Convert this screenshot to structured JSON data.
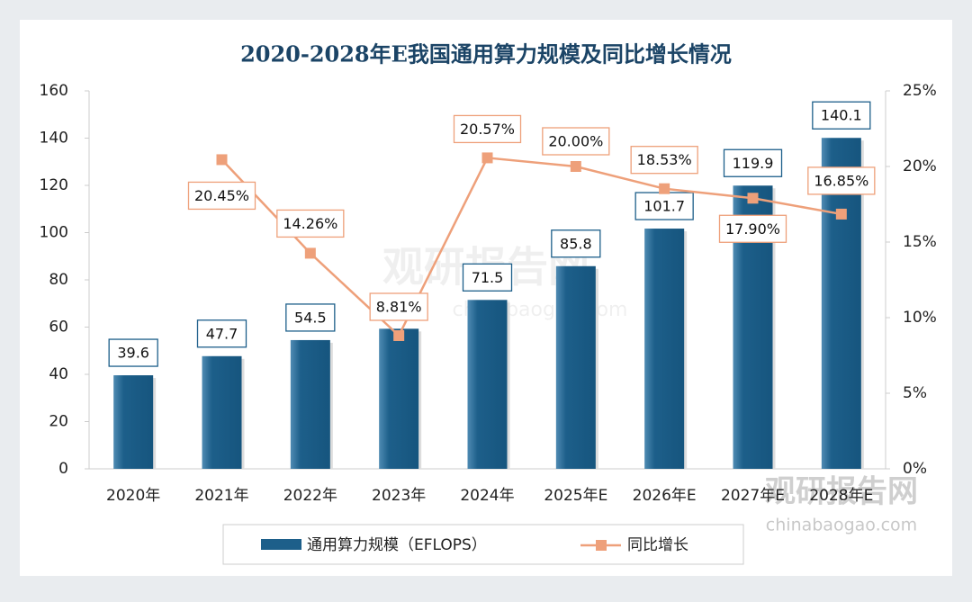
{
  "chart_data": {
    "type": "bar+line",
    "title": "2020-2028年E我国通用算力规模及同比增长情况",
    "categories": [
      "2020年",
      "2021年",
      "2022年",
      "2023年",
      "2024年",
      "2025年E",
      "2026年E",
      "2027年E",
      "2028年E"
    ],
    "series": [
      {
        "name": "通用算力规模（EFLOPS）",
        "type": "bar",
        "color": "#1d5f8a",
        "values": [
          39.6,
          47.7,
          54.5,
          59.3,
          71.5,
          85.8,
          101.7,
          119.9,
          140.1
        ],
        "value_labels": [
          "39.6",
          "47.7",
          "54.5",
          null,
          "71.5",
          "85.8",
          "101.7",
          "119.9",
          "140.1"
        ]
      },
      {
        "name": "同比增长",
        "type": "line",
        "axis": "y2",
        "color": "#eea07a",
        "values": [
          null,
          20.45,
          14.26,
          8.81,
          20.57,
          20.0,
          18.53,
          17.9,
          16.85
        ],
        "value_labels": [
          null,
          "20.45%",
          "14.26%",
          "8.81%",
          "20.57%",
          "20.00%",
          "18.53%",
          "17.90%",
          "16.85%"
        ]
      }
    ],
    "ylim": [
      0,
      160
    ],
    "yticks": [
      0,
      20,
      40,
      60,
      80,
      100,
      120,
      140,
      160
    ],
    "y2lim": [
      0,
      25
    ],
    "y2ticks": [
      {
        "value": 0,
        "label": "0%"
      },
      {
        "value": 5,
        "label": "5%"
      },
      {
        "value": 10,
        "label": "10%"
      },
      {
        "value": 15,
        "label": "15%"
      },
      {
        "value": 20,
        "label": "20%"
      },
      {
        "value": 25,
        "label": "25%"
      }
    ],
    "legend": "bottom",
    "watermark": [
      "观研报告网",
      "chinabaogao.com"
    ]
  }
}
